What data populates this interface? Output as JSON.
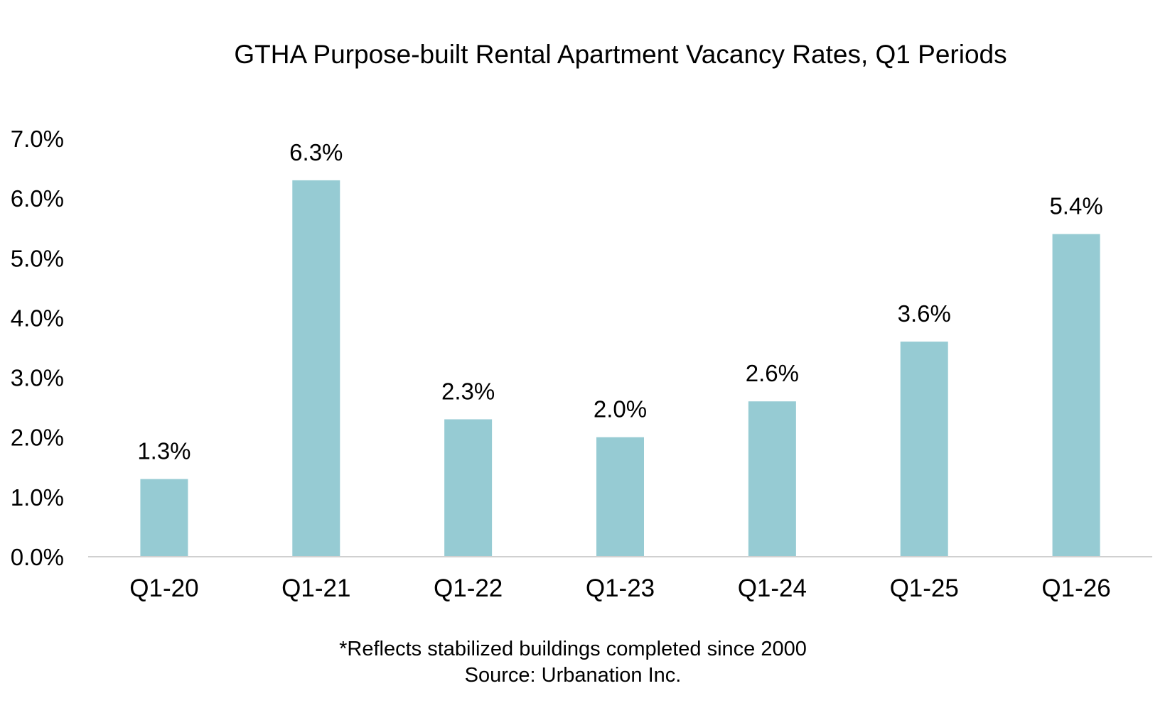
{
  "chart_data": {
    "type": "bar",
    "title": "GTHA Purpose-built Rental Apartment Vacancy Rates, Q1 Periods",
    "categories": [
      "Q1-20",
      "Q1-21",
      "Q1-22",
      "Q1-23",
      "Q1-24",
      "Q1-25",
      "Q1-26"
    ],
    "values": [
      1.3,
      6.3,
      2.3,
      2.0,
      2.6,
      3.6,
      5.4
    ],
    "data_labels": [
      "1.3%",
      "6.3%",
      "2.3%",
      "2.0%",
      "2.6%",
      "3.6%",
      "5.4%"
    ],
    "y_ticks": [
      0,
      1,
      2,
      3,
      4,
      5,
      6,
      7
    ],
    "y_tick_labels": [
      "0.0%",
      "1.0%",
      "2.0%",
      "3.0%",
      "4.0%",
      "5.0%",
      "6.0%",
      "7.0%"
    ],
    "ylim": [
      0,
      7
    ],
    "xlabel": "",
    "ylabel": "",
    "grid": false,
    "legend": "none",
    "bar_color": "#96cbd3",
    "axis_color": "#d0d0d0"
  },
  "notes": {
    "footnote": "*Reflects stabilized buildings completed since 2000",
    "source": "Source: Urbanation Inc."
  }
}
